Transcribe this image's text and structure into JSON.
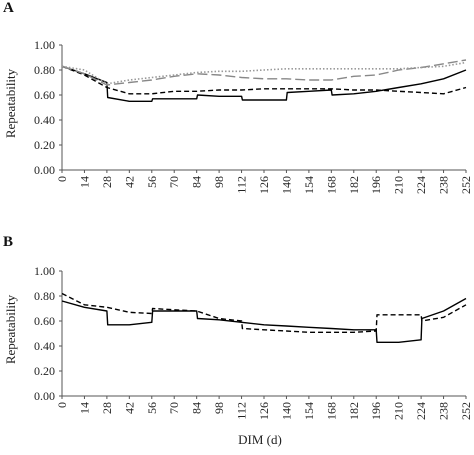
{
  "chart_data": [
    {
      "panel": "A",
      "type": "line",
      "ylabel": "Repeatability",
      "xlabel": "",
      "ylim": [
        0,
        1
      ],
      "yticks": [
        "0.00",
        "0.20",
        "0.40",
        "0.60",
        "0.80",
        "1.00"
      ],
      "xlim": [
        0,
        252
      ],
      "xticks": [
        "0",
        "14",
        "28",
        "42",
        "56",
        "70",
        "84",
        "98",
        "112",
        "126",
        "140",
        "154",
        "168",
        "182",
        "196",
        "210",
        "224",
        "238",
        "252"
      ],
      "series": [
        {
          "style": "solid",
          "color": "#000000",
          "x": [
            0,
            14,
            28,
            28.5,
            42,
            56,
            56.5,
            70,
            84,
            84.5,
            98,
            112,
            112.5,
            126,
            140,
            140.5,
            154,
            168,
            168.5,
            182,
            196,
            210,
            224,
            238,
            252
          ],
          "y": [
            0.83,
            0.77,
            0.7,
            0.58,
            0.55,
            0.55,
            0.57,
            0.57,
            0.57,
            0.6,
            0.59,
            0.59,
            0.56,
            0.56,
            0.56,
            0.62,
            0.63,
            0.64,
            0.6,
            0.61,
            0.63,
            0.66,
            0.69,
            0.73,
            0.8
          ]
        },
        {
          "style": "dashed",
          "color": "#000000",
          "x": [
            0,
            14,
            28,
            42,
            56,
            70,
            84,
            98,
            112,
            126,
            140,
            154,
            168,
            182,
            196,
            210,
            224,
            238,
            252
          ],
          "y": [
            0.83,
            0.76,
            0.66,
            0.61,
            0.61,
            0.63,
            0.63,
            0.64,
            0.64,
            0.65,
            0.65,
            0.65,
            0.65,
            0.64,
            0.64,
            0.63,
            0.62,
            0.61,
            0.66
          ]
        },
        {
          "style": "longdash",
          "color": "#888888",
          "x": [
            0,
            14,
            28,
            42,
            56,
            70,
            84,
            98,
            112,
            126,
            140,
            154,
            168,
            182,
            196,
            210,
            224,
            238,
            252
          ],
          "y": [
            0.83,
            0.77,
            0.68,
            0.7,
            0.72,
            0.75,
            0.77,
            0.76,
            0.74,
            0.73,
            0.73,
            0.72,
            0.72,
            0.75,
            0.76,
            0.8,
            0.82,
            0.85,
            0.88
          ]
        },
        {
          "style": "dotted",
          "color": "#999999",
          "x": [
            0,
            14,
            28,
            42,
            56,
            70,
            84,
            98,
            112,
            126,
            140,
            154,
            168,
            182,
            196,
            210,
            224,
            238,
            252
          ],
          "y": [
            0.83,
            0.8,
            0.69,
            0.72,
            0.74,
            0.76,
            0.78,
            0.79,
            0.79,
            0.8,
            0.81,
            0.81,
            0.81,
            0.81,
            0.81,
            0.81,
            0.82,
            0.83,
            0.86
          ]
        }
      ]
    },
    {
      "panel": "B",
      "type": "line",
      "ylabel": "Repeatability",
      "xlabel": "DIM (d)",
      "ylim": [
        0,
        1
      ],
      "yticks": [
        "0.00",
        "0.20",
        "0.40",
        "0.60",
        "0.80",
        "1.00"
      ],
      "xlim": [
        0,
        252
      ],
      "xticks": [
        "0",
        "14",
        "28",
        "42",
        "56",
        "70",
        "84",
        "98",
        "112",
        "126",
        "140",
        "154",
        "168",
        "182",
        "196",
        "210",
        "224",
        "238",
        "252"
      ],
      "series": [
        {
          "style": "solid",
          "color": "#000000",
          "x": [
            0,
            14,
            28,
            28.5,
            42,
            56,
            56.5,
            70,
            84,
            84.5,
            98,
            112,
            126,
            140,
            154,
            168,
            182,
            196,
            196.5,
            210,
            224,
            224.5,
            238,
            252
          ],
          "y": [
            0.76,
            0.71,
            0.68,
            0.57,
            0.57,
            0.59,
            0.68,
            0.68,
            0.68,
            0.62,
            0.61,
            0.59,
            0.57,
            0.56,
            0.55,
            0.54,
            0.53,
            0.53,
            0.43,
            0.43,
            0.45,
            0.62,
            0.68,
            0.78
          ]
        },
        {
          "style": "dashed",
          "color": "#000000",
          "x": [
            0,
            14,
            28,
            42,
            56,
            56.5,
            70,
            84,
            98,
            112,
            112.5,
            126,
            140,
            154,
            168,
            182,
            196,
            196.5,
            210,
            224,
            224.5,
            238,
            252
          ],
          "y": [
            0.82,
            0.73,
            0.71,
            0.67,
            0.66,
            0.7,
            0.69,
            0.68,
            0.62,
            0.6,
            0.54,
            0.53,
            0.52,
            0.51,
            0.51,
            0.51,
            0.52,
            0.65,
            0.65,
            0.65,
            0.6,
            0.63,
            0.73
          ]
        }
      ]
    }
  ]
}
